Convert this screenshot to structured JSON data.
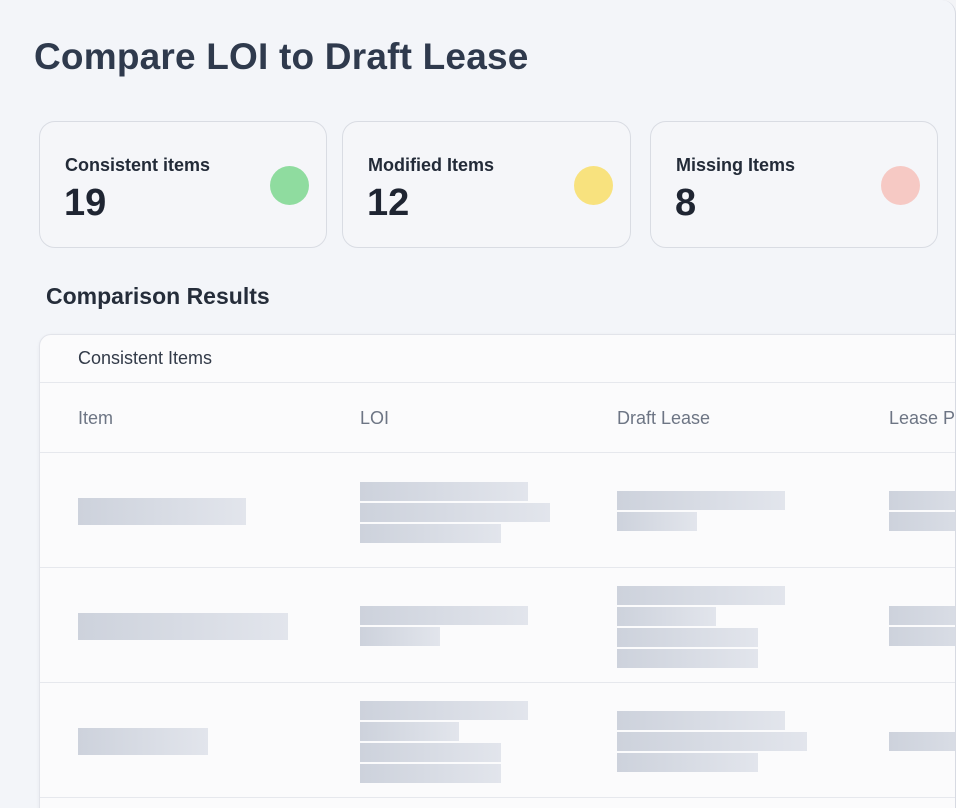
{
  "page": {
    "title": "Compare LOI to Draft Lease"
  },
  "stats": [
    {
      "label": "Consistent items",
      "value": "19",
      "color": "#8fdc9f",
      "icon": "green-status-dot-icon"
    },
    {
      "label": "Modified Items",
      "value": "12",
      "color": "#f8e27e",
      "icon": "yellow-status-dot-icon"
    },
    {
      "label": "Missing Items",
      "value": "8",
      "color": "#f6c9c4",
      "icon": "red-status-dot-icon"
    }
  ],
  "results": {
    "title": "Comparison Results",
    "active_tab": "Consistent Items",
    "columns": [
      "Item",
      "LOI",
      "Draft Lease",
      "Lease P"
    ]
  }
}
